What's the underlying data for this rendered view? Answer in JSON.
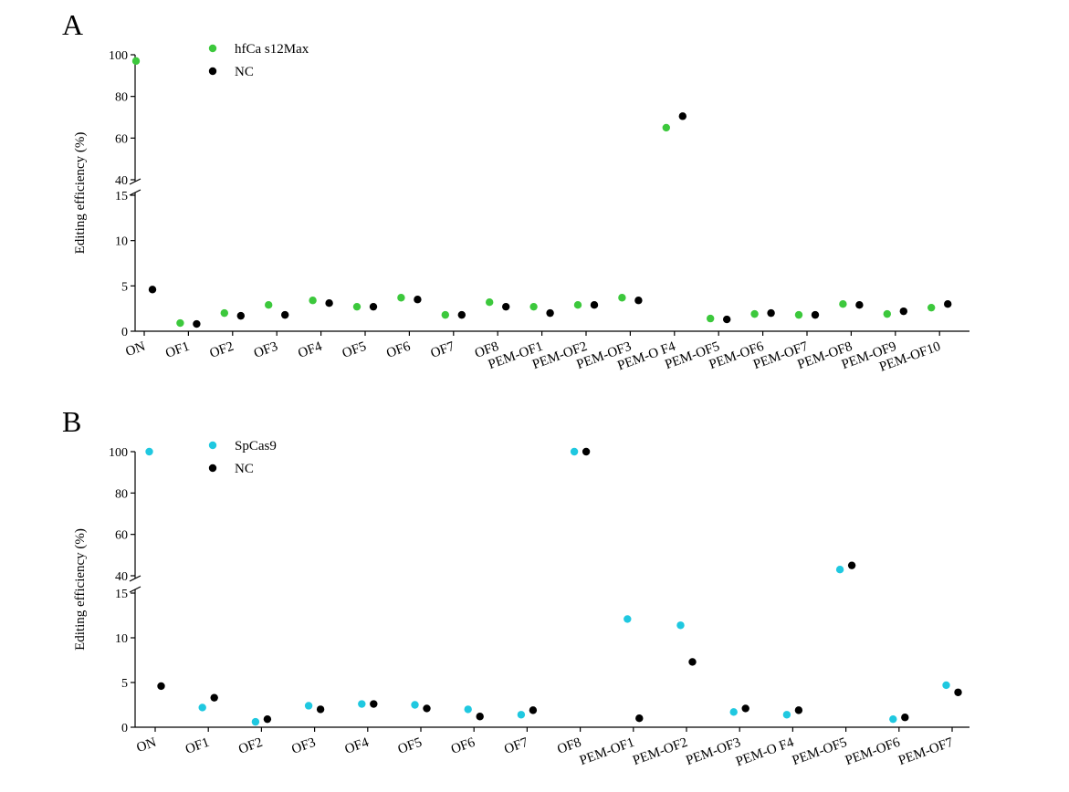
{
  "chart_data": [
    {
      "panel_label": "A",
      "type": "scatter",
      "ylabel": "Editing efficiency (%)",
      "y_break": {
        "lower_range": [
          0,
          15
        ],
        "upper_range": [
          40,
          100
        ]
      },
      "yticks_lower": [
        0,
        5,
        10,
        15
      ],
      "yticks_upper": [
        40,
        60,
        80,
        100
      ],
      "categories": [
        "ON",
        "OF1",
        "OF2",
        "OF3",
        "OF4",
        "OF5",
        "OF6",
        "OF7",
        "OF8",
        "PEM-OF1",
        "PEM-OF2",
        "PEM-OF3",
        "PEM-O F4",
        "PEM-OF5",
        "PEM-OF6",
        "PEM-OF7",
        "PEM-OF8",
        "PEM-OF9",
        "PEM-OF10"
      ],
      "legend_position": "top-left",
      "series": [
        {
          "name": "hfCa s12Max",
          "color": "#3cc83c",
          "values": [
            97,
            0.9,
            2.0,
            2.9,
            3.4,
            2.7,
            3.7,
            1.8,
            3.2,
            2.7,
            2.9,
            3.7,
            65,
            1.4,
            1.9,
            1.8,
            3.0,
            1.9,
            2.6
          ]
        },
        {
          "name": "NC",
          "color": "#000000",
          "values": [
            4.6,
            0.8,
            1.7,
            1.8,
            3.1,
            2.7,
            3.5,
            1.8,
            2.7,
            2.0,
            2.9,
            3.4,
            70.5,
            1.3,
            2.0,
            1.8,
            2.9,
            2.2,
            3.0
          ]
        }
      ]
    },
    {
      "panel_label": "B",
      "type": "scatter",
      "ylabel": "Editing efficiency (%)",
      "y_break": {
        "lower_range": [
          0,
          15
        ],
        "upper_range": [
          40,
          100
        ]
      },
      "yticks_lower": [
        0,
        5,
        10,
        15
      ],
      "yticks_upper": [
        40,
        60,
        80,
        100
      ],
      "categories": [
        "ON",
        "OF1",
        "OF2",
        "OF3",
        "OF4",
        "OF5",
        "OF6",
        "OF7",
        "OF8",
        "PEM-OF1",
        "PEM-OF2",
        "PEM-OF3",
        "PEM-O F4",
        "PEM-OF5",
        "PEM-OF6",
        "PEM-OF7"
      ],
      "legend_position": "top-left",
      "series": [
        {
          "name": "SpCas9",
          "color": "#1fc8e0",
          "values": [
            100,
            2.2,
            0.6,
            2.4,
            2.6,
            2.5,
            2.0,
            1.4,
            100,
            12.1,
            11.4,
            1.7,
            1.4,
            43,
            0.9,
            4.7
          ]
        },
        {
          "name": "NC",
          "color": "#000000",
          "values": [
            4.6,
            3.3,
            0.9,
            2.0,
            2.6,
            2.1,
            1.2,
            1.9,
            100,
            1.0,
            7.3,
            2.1,
            1.9,
            45,
            1.1,
            3.9
          ]
        }
      ]
    }
  ]
}
